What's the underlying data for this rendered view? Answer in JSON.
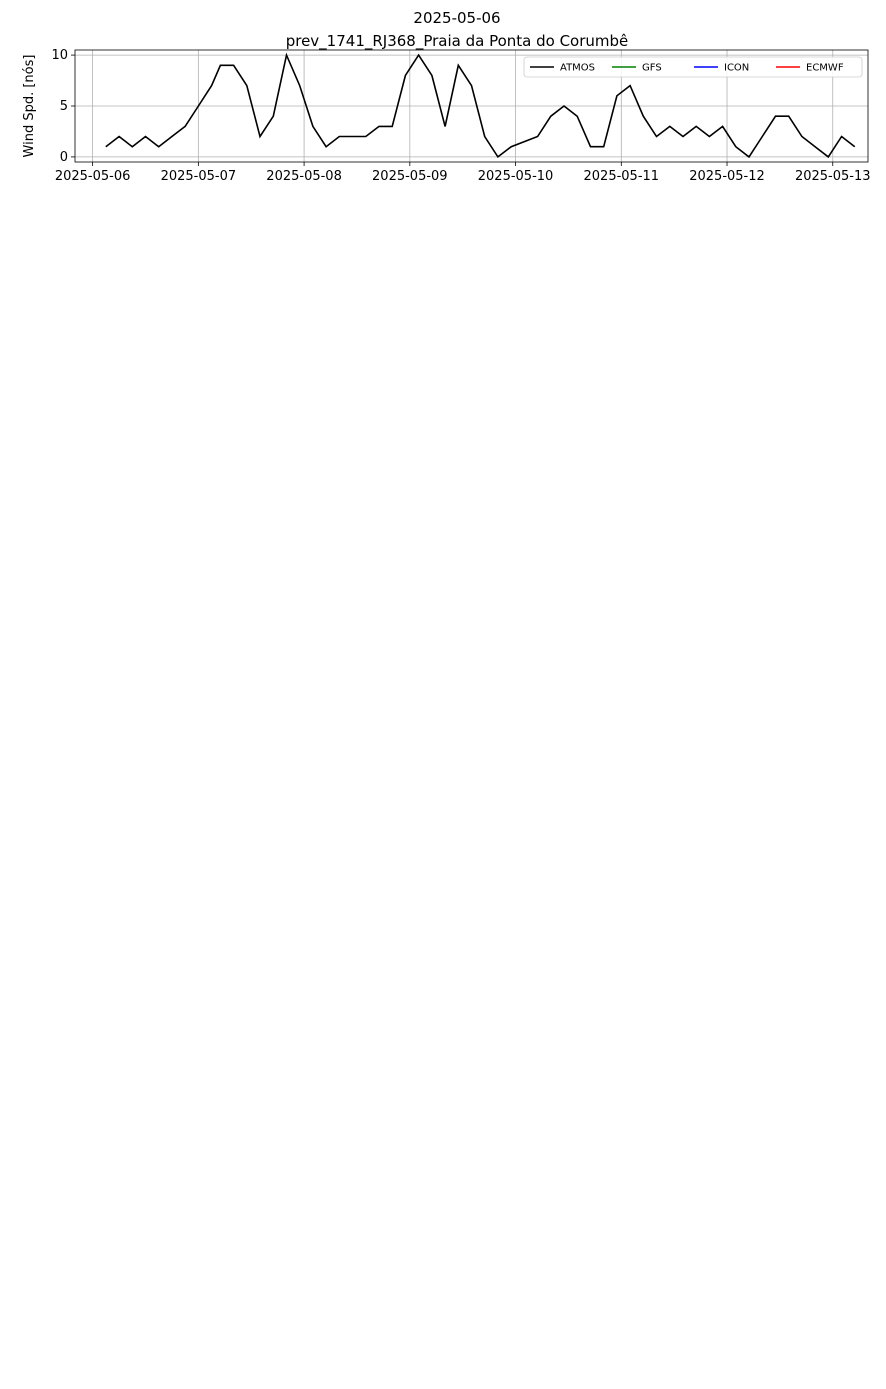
{
  "title": "2025-05-06",
  "subtitle": "prev_1741_RJ368_Praia da Ponta do Corumbê",
  "colors": {
    "ATMOS": "#000000",
    "GFS": "#008000",
    "ICON": "#0000ff",
    "ECMWF": "#ff0000"
  },
  "x_ticks": [
    "2025-05-06",
    "2025-05-07",
    "2025-05-08",
    "2025-05-09",
    "2025-05-10",
    "2025-05-11",
    "2025-05-12",
    "2025-05-13"
  ],
  "chart_data": [
    {
      "type": "line",
      "ylabel": "Wind Spd. [nós]",
      "xlim": [
        "2025-05-05T20:00",
        "2025-05-13T08:00"
      ],
      "ylim": [
        -0.5,
        10.5
      ],
      "yticks": [
        0,
        5,
        10
      ],
      "grid": true,
      "legend": "top-right",
      "legend_entries": [
        "ATMOS",
        "GFS",
        "ICON",
        "ECMWF"
      ],
      "series": [
        {
          "name": "ATMOS",
          "color": "#000000",
          "points": [
            [
              "2025-05-06T03:00",
              1
            ],
            [
              "2025-05-06T06:00",
              2
            ],
            [
              "2025-05-06T09:00",
              1
            ],
            [
              "2025-05-06T12:00",
              2
            ],
            [
              "2025-05-06T15:00",
              1
            ],
            [
              "2025-05-06T18:00",
              2
            ],
            [
              "2025-05-06T21:00",
              3
            ],
            [
              "2025-05-07T00:00",
              5
            ],
            [
              "2025-05-07T03:00",
              7
            ],
            [
              "2025-05-07T05:00",
              9
            ],
            [
              "2025-05-07T08:00",
              9
            ],
            [
              "2025-05-07T11:00",
              7
            ],
            [
              "2025-05-07T14:00",
              2
            ],
            [
              "2025-05-07T17:00",
              4
            ],
            [
              "2025-05-07T20:00",
              10
            ],
            [
              "2025-05-07T23:00",
              7
            ],
            [
              "2025-05-08T02:00",
              3
            ],
            [
              "2025-05-08T05:00",
              1
            ],
            [
              "2025-05-08T08:00",
              2
            ],
            [
              "2025-05-08T14:00",
              2
            ],
            [
              "2025-05-08T17:00",
              3
            ],
            [
              "2025-05-08T20:00",
              3
            ],
            [
              "2025-05-08T23:00",
              8
            ],
            [
              "2025-05-09T02:00",
              10
            ],
            [
              "2025-05-09T05:00",
              8
            ],
            [
              "2025-05-09T08:00",
              3
            ],
            [
              "2025-05-09T11:00",
              9
            ],
            [
              "2025-05-09T14:00",
              7
            ],
            [
              "2025-05-09T17:00",
              2
            ],
            [
              "2025-05-09T20:00",
              0
            ],
            [
              "2025-05-09T23:00",
              1
            ],
            [
              "2025-05-10T05:00",
              2
            ],
            [
              "2025-05-10T08:00",
              4
            ],
            [
              "2025-05-10T11:00",
              5
            ],
            [
              "2025-05-10T14:00",
              4
            ],
            [
              "2025-05-10T17:00",
              1
            ],
            [
              "2025-05-10T20:00",
              1
            ],
            [
              "2025-05-10T23:00",
              6
            ],
            [
              "2025-05-11T02:00",
              7
            ],
            [
              "2025-05-11T05:00",
              4
            ],
            [
              "2025-05-11T08:00",
              2
            ],
            [
              "2025-05-11T11:00",
              3
            ],
            [
              "2025-05-11T14:00",
              2
            ],
            [
              "2025-05-11T17:00",
              3
            ],
            [
              "2025-05-11T20:00",
              2
            ],
            [
              "2025-05-11T23:00",
              3
            ],
            [
              "2025-05-12T02:00",
              1
            ],
            [
              "2025-05-12T05:00",
              0
            ],
            [
              "2025-05-12T08:00",
              2
            ],
            [
              "2025-05-12T11:00",
              4
            ],
            [
              "2025-05-12T14:00",
              4
            ],
            [
              "2025-05-12T17:00",
              2
            ],
            [
              "2025-05-12T20:00",
              1
            ],
            [
              "2025-05-12T23:00",
              0
            ],
            [
              "2025-05-13T02:00",
              2
            ],
            [
              "2025-05-13T05:00",
              1
            ]
          ]
        }
      ]
    }
  ]
}
